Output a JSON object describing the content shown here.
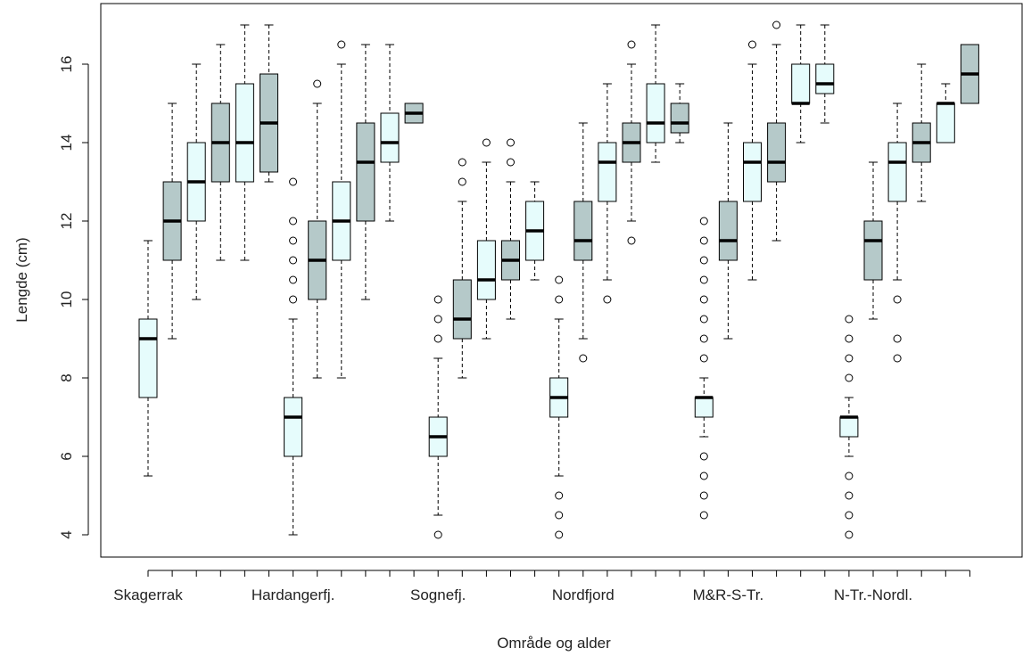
{
  "chart_data": {
    "type": "boxplot",
    "title": "",
    "xlabel": "Område og alder",
    "ylabel": "Lengde (cm)",
    "ylim": [
      3.5,
      17.5
    ],
    "y_ticks": [
      4,
      6,
      8,
      10,
      12,
      14,
      16
    ],
    "category_labels": [
      "Skagerrak",
      "Hardangerfj.",
      "Sognefj.",
      "Nordfjord",
      "M&R-S-Tr.",
      "N-Tr.-Nordl."
    ],
    "colors": {
      "light": "#e6fcfc",
      "dark": "#b5c9c9",
      "stroke": "#000000"
    },
    "boxes": [
      {
        "color": "light",
        "lower_whisker": 5.5,
        "q1": 7.5,
        "median": 9.0,
        "q3": 9.5,
        "upper_whisker": 11.5,
        "outliers": []
      },
      {
        "color": "dark",
        "lower_whisker": 9.0,
        "q1": 11.0,
        "median": 12.0,
        "q3": 13.0,
        "upper_whisker": 15.0,
        "outliers": []
      },
      {
        "color": "light",
        "lower_whisker": 10.0,
        "q1": 12.0,
        "median": 13.0,
        "q3": 14.0,
        "upper_whisker": 16.0,
        "outliers": []
      },
      {
        "color": "dark",
        "lower_whisker": 11.0,
        "q1": 13.0,
        "median": 14.0,
        "q3": 15.0,
        "upper_whisker": 16.5,
        "outliers": []
      },
      {
        "color": "light",
        "lower_whisker": 11.0,
        "q1": 13.0,
        "median": 14.0,
        "q3": 15.5,
        "upper_whisker": 17.0,
        "outliers": []
      },
      {
        "color": "dark",
        "lower_whisker": 13.0,
        "q1": 13.25,
        "median": 14.5,
        "q3": 15.75,
        "upper_whisker": 17.0,
        "outliers": []
      },
      {
        "color": "light",
        "lower_whisker": 4.0,
        "q1": 6.0,
        "median": 7.0,
        "q3": 7.5,
        "upper_whisker": 9.5,
        "outliers": [
          10.0,
          10.5,
          11.0,
          11.5,
          12.0,
          13.0
        ]
      },
      {
        "color": "dark",
        "lower_whisker": 8.0,
        "q1": 10.0,
        "median": 11.0,
        "q3": 12.0,
        "upper_whisker": 15.0,
        "outliers": [
          15.5
        ]
      },
      {
        "color": "light",
        "lower_whisker": 8.0,
        "q1": 11.0,
        "median": 12.0,
        "q3": 13.0,
        "upper_whisker": 16.0,
        "outliers": [
          16.5
        ]
      },
      {
        "color": "dark",
        "lower_whisker": 10.0,
        "q1": 12.0,
        "median": 13.5,
        "q3": 14.5,
        "upper_whisker": 16.5,
        "outliers": []
      },
      {
        "color": "light",
        "lower_whisker": 12.0,
        "q1": 13.5,
        "median": 14.0,
        "q3": 14.75,
        "upper_whisker": 16.5,
        "outliers": []
      },
      {
        "color": "dark",
        "lower_whisker": 14.5,
        "q1": 14.5,
        "median": 14.75,
        "q3": 15.0,
        "upper_whisker": 15.0,
        "outliers": []
      },
      {
        "color": "light",
        "lower_whisker": 4.5,
        "q1": 6.0,
        "median": 6.5,
        "q3": 7.0,
        "upper_whisker": 8.5,
        "outliers": [
          4.0,
          9.0,
          9.5,
          10.0
        ]
      },
      {
        "color": "dark",
        "lower_whisker": 8.0,
        "q1": 9.0,
        "median": 9.5,
        "q3": 10.5,
        "upper_whisker": 12.5,
        "outliers": [
          13.0,
          13.5
        ]
      },
      {
        "color": "light",
        "lower_whisker": 9.0,
        "q1": 10.0,
        "median": 10.5,
        "q3": 11.5,
        "upper_whisker": 13.5,
        "outliers": [
          14.0
        ]
      },
      {
        "color": "dark",
        "lower_whisker": 9.5,
        "q1": 10.5,
        "median": 11.0,
        "q3": 11.5,
        "upper_whisker": 13.0,
        "outliers": [
          13.5,
          14.0
        ]
      },
      {
        "color": "light",
        "lower_whisker": 10.5,
        "q1": 11.0,
        "median": 11.75,
        "q3": 12.5,
        "upper_whisker": 13.0,
        "outliers": []
      },
      {
        "color": "light",
        "lower_whisker": 5.5,
        "q1": 7.0,
        "median": 7.5,
        "q3": 8.0,
        "upper_whisker": 9.5,
        "outliers": [
          4.0,
          4.5,
          5.0,
          10.0,
          10.5
        ]
      },
      {
        "color": "dark",
        "lower_whisker": 9.0,
        "q1": 11.0,
        "median": 11.5,
        "q3": 12.5,
        "upper_whisker": 14.5,
        "outliers": [
          8.5
        ]
      },
      {
        "color": "light",
        "lower_whisker": 10.5,
        "q1": 12.5,
        "median": 13.5,
        "q3": 14.0,
        "upper_whisker": 15.5,
        "outliers": [
          10.0
        ]
      },
      {
        "color": "dark",
        "lower_whisker": 12.0,
        "q1": 13.5,
        "median": 14.0,
        "q3": 14.5,
        "upper_whisker": 16.0,
        "outliers": [
          11.5,
          16.5
        ]
      },
      {
        "color": "light",
        "lower_whisker": 13.5,
        "q1": 14.0,
        "median": 14.5,
        "q3": 15.5,
        "upper_whisker": 17.0,
        "outliers": []
      },
      {
        "color": "dark",
        "lower_whisker": 14.0,
        "q1": 14.25,
        "median": 14.5,
        "q3": 15.0,
        "upper_whisker": 15.5,
        "outliers": []
      },
      {
        "color": "light",
        "lower_whisker": 6.5,
        "q1": 7.0,
        "median": 7.5,
        "q3": 7.5,
        "upper_whisker": 8.0,
        "outliers": [
          4.5,
          5.0,
          5.5,
          6.0,
          8.5,
          9.0,
          9.5,
          10.0,
          10.5,
          11.0,
          11.5,
          12.0
        ]
      },
      {
        "color": "dark",
        "lower_whisker": 9.0,
        "q1": 11.0,
        "median": 11.5,
        "q3": 12.5,
        "upper_whisker": 14.5,
        "outliers": []
      },
      {
        "color": "light",
        "lower_whisker": 10.5,
        "q1": 12.5,
        "median": 13.5,
        "q3": 14.0,
        "upper_whisker": 16.0,
        "outliers": [
          16.5
        ]
      },
      {
        "color": "dark",
        "lower_whisker": 11.5,
        "q1": 13.0,
        "median": 13.5,
        "q3": 14.5,
        "upper_whisker": 16.5,
        "outliers": [
          17.0
        ]
      },
      {
        "color": "light",
        "lower_whisker": 14.0,
        "q1": 15.0,
        "median": 15.0,
        "q3": 16.0,
        "upper_whisker": 17.0,
        "outliers": []
      },
      {
        "color": "light",
        "lower_whisker": 14.5,
        "q1": 15.25,
        "median": 15.5,
        "q3": 16.0,
        "upper_whisker": 17.0,
        "outliers": []
      },
      {
        "color": "light",
        "lower_whisker": 6.0,
        "q1": 6.5,
        "median": 7.0,
        "q3": 7.0,
        "upper_whisker": 7.5,
        "outliers": [
          4.0,
          4.5,
          5.0,
          5.5,
          8.0,
          8.5,
          9.0,
          9.5
        ]
      },
      {
        "color": "dark",
        "lower_whisker": 9.5,
        "q1": 10.5,
        "median": 11.5,
        "q3": 12.0,
        "upper_whisker": 13.5,
        "outliers": []
      },
      {
        "color": "light",
        "lower_whisker": 10.5,
        "q1": 12.5,
        "median": 13.5,
        "q3": 14.0,
        "upper_whisker": 15.0,
        "outliers": [
          8.5,
          9.0,
          10.0
        ]
      },
      {
        "color": "dark",
        "lower_whisker": 12.5,
        "q1": 13.5,
        "median": 14.0,
        "q3": 14.5,
        "upper_whisker": 16.0,
        "outliers": []
      },
      {
        "color": "light",
        "lower_whisker": 14.0,
        "q1": 14.0,
        "median": 15.0,
        "q3": 15.0,
        "upper_whisker": 15.5,
        "outliers": []
      },
      {
        "color": "dark",
        "lower_whisker": 15.0,
        "q1": 15.0,
        "median": 15.75,
        "q3": 16.5,
        "upper_whisker": 16.5,
        "outliers": []
      }
    ]
  }
}
